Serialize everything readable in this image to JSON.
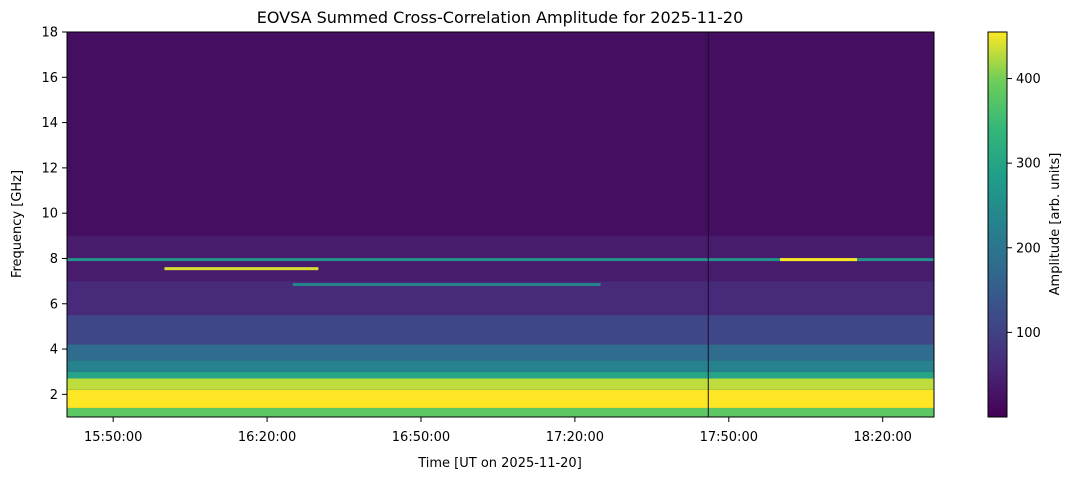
{
  "chart_data": {
    "type": "heatmap",
    "title": "EOVSA Summed Cross-Correlation Amplitude for 2025-11-20",
    "xlabel": "Time [UT on 2025-11-20]",
    "ylabel": "Frequency [GHz]",
    "colorbar_label": "Amplitude [arb. units]",
    "colormap": "viridis",
    "xlim": [
      "15:41:00",
      "18:30:00"
    ],
    "ylim": [
      1.0,
      18.0
    ],
    "clim": [
      0,
      455
    ],
    "x_ticks": [
      "15:50:00",
      "16:20:00",
      "16:50:00",
      "17:20:00",
      "17:50:00",
      "18:20:00"
    ],
    "y_ticks": [
      2,
      4,
      6,
      8,
      10,
      12,
      14,
      16,
      18
    ],
    "colorbar_ticks": [
      100,
      200,
      300,
      400
    ],
    "background_amplitude": 20,
    "frequency_bands": [
      {
        "f_min": 1.0,
        "f_max": 1.4,
        "amplitude": 380
      },
      {
        "f_min": 1.4,
        "f_max": 2.2,
        "amplitude": 455
      },
      {
        "f_min": 2.2,
        "f_max": 2.7,
        "amplitude": 430
      },
      {
        "f_min": 2.7,
        "f_max": 3.0,
        "amplitude": 300
      },
      {
        "f_min": 3.0,
        "f_max": 3.5,
        "amplitude": 230
      },
      {
        "f_min": 3.5,
        "f_max": 4.2,
        "amplitude": 180
      },
      {
        "f_min": 4.2,
        "f_max": 5.5,
        "amplitude": 110
      },
      {
        "f_min": 5.5,
        "f_max": 7.0,
        "amplitude": 60
      },
      {
        "f_min": 7.0,
        "f_max": 9.0,
        "amplitude": 40
      }
    ],
    "rfi_lines": [
      {
        "freq": 7.95,
        "time_start": "15:41:00",
        "time_end": "18:30:00",
        "amplitude": 260
      },
      {
        "freq": 7.55,
        "time_start": "16:00:00",
        "time_end": "16:30:00",
        "amplitude": 440
      },
      {
        "freq": 6.85,
        "time_start": "16:25:00",
        "time_end": "17:25:00",
        "amplitude": 230
      },
      {
        "freq": 7.95,
        "time_start": "18:00:00",
        "time_end": "18:15:00",
        "amplitude": 455
      }
    ],
    "vertical_gaps": [
      "17:46:00"
    ]
  }
}
